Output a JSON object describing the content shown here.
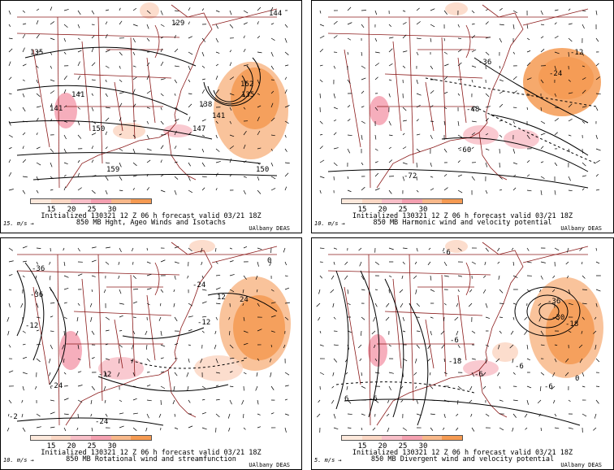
{
  "colorbar": {
    "ticks": [
      "15",
      "20",
      "25",
      "30"
    ],
    "colors": [
      "#fde9dc",
      "#fbd7c4",
      "#f8bfc8",
      "#f4a0b0",
      "#f8b88a",
      "#f59a52"
    ]
  },
  "panels": [
    {
      "id": "top-left",
      "caption_line1": "Initialized 130321 12 Z   06 h forecast valid 03/21 18Z",
      "caption_line2": "850 MB Hght, Ageo Winds and Isotachs",
      "scale_label": "15. m/s",
      "credit": "UAlbany DEAS",
      "contour_labels": [
        "129",
        "144",
        "135",
        "141",
        "141",
        "150",
        "159",
        "162",
        "135",
        "138",
        "141",
        "147",
        "150"
      ]
    },
    {
      "id": "top-right",
      "caption_line1": "Initialized 130321 12 Z   06 h forecast valid 03/21 18Z",
      "caption_line2": "850 MB Harmonic wind and velocity potential",
      "scale_label": "10. m/s",
      "credit": "UAlbany DEAS",
      "contour_labels": [
        "-36",
        "-48",
        "-60",
        "-72",
        "-12",
        "-24"
      ]
    },
    {
      "id": "bottom-left",
      "caption_line1": "Initialized 130321 12 Z   06 h forecast valid 03/21 18Z",
      "caption_line2": "850 MB Rotational wind and streamfunction",
      "scale_label": "10. m/s",
      "credit": "UAlbany DEAS",
      "contour_labels": [
        "-36",
        "-12",
        "-36",
        "-24",
        "-12",
        "-24",
        "-2",
        "0",
        "-24",
        "-12",
        "24",
        "12"
      ]
    },
    {
      "id": "bottom-right",
      "caption_line1": "Initialized 130321 12 Z   06 h forecast valid 03/21 18Z",
      "caption_line2": "850 MB Divergent wind and velocity potential",
      "scale_label": "5. m/s",
      "credit": "UAlbany DEAS",
      "contour_labels": [
        "-6",
        "-6",
        "6",
        "-36",
        "-30",
        "-18",
        "-6",
        "0",
        "-6",
        "-6",
        "-6",
        "-18"
      ]
    }
  ]
}
